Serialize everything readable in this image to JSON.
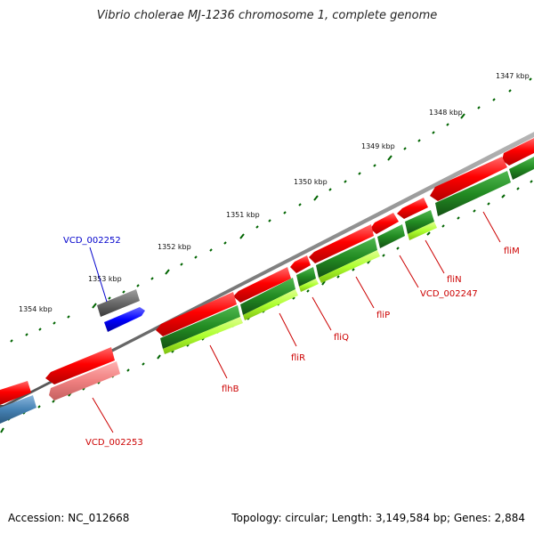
{
  "title": "Vibrio cholerae MJ-1236 chromosome 1, complete genome",
  "footer": {
    "accession": "Accession: NC_012668",
    "summary": "Topology: circular; Length: 3,149,584 bp; Genes: 2,884"
  },
  "ticks": [
    "1347 kbp",
    "1348 kbp",
    "1349 kbp",
    "1350 kbp",
    "1351 kbp",
    "1352 kbp",
    "1353 kbp",
    "1354 kbp"
  ],
  "gene_labels": [
    "VCD_002252",
    "fliM",
    "fliN",
    "VCD_002247",
    "fliP",
    "fliQ",
    "fliR",
    "flhB",
    "VCD_002253"
  ],
  "colors": {
    "cds": "#ff0000",
    "cds_light": "#f08080",
    "gene_green": "#228b22",
    "gene_lightgreen": "#adff2f",
    "gray_block": "#696969",
    "blue_block": "#0000ff",
    "steel_block": "#4682b4",
    "backbone": "#808080",
    "tick": "#006400",
    "label_red": "#cc0000",
    "label_blue": "#0000cc"
  }
}
